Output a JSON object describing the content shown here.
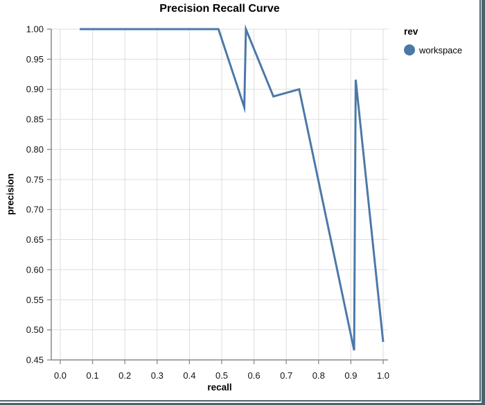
{
  "panel_frame": {
    "border_color": "#4c616c",
    "gap_color": "#c3ced3"
  },
  "chart_data": {
    "type": "line",
    "title": "Precision Recall Curve",
    "xlabel": "recall",
    "ylabel": "precision",
    "xlim": [
      0.0,
      1.0
    ],
    "ylim": [
      0.45,
      1.0
    ],
    "grid": true,
    "x_ticks": [
      "0.0",
      "0.1",
      "0.2",
      "0.3",
      "0.4",
      "0.5",
      "0.6",
      "0.7",
      "0.8",
      "0.9",
      "1.0"
    ],
    "y_ticks": [
      "1.00",
      "0.95",
      "0.90",
      "0.85",
      "0.80",
      "0.75",
      "0.70",
      "0.65",
      "0.60",
      "0.55",
      "0.50",
      "0.45"
    ],
    "colors": {
      "line": "#4c78a8",
      "grid": "#dddddd",
      "axis": "#888888",
      "label": "#111111"
    },
    "legend": {
      "title": "rev",
      "position": "right",
      "entries": [
        {
          "label": "workspace",
          "color": "#4c78a8"
        }
      ]
    },
    "series": [
      {
        "name": "workspace",
        "color": "#4c78a8",
        "points": [
          [
            0.06,
            1.0
          ],
          [
            0.49,
            1.0
          ],
          [
            0.57,
            0.87
          ],
          [
            0.575,
            1.0
          ],
          [
            0.66,
            0.888
          ],
          [
            0.74,
            0.9
          ],
          [
            0.91,
            0.466
          ],
          [
            0.915,
            0.916
          ],
          [
            1.0,
            0.48
          ]
        ]
      }
    ]
  }
}
